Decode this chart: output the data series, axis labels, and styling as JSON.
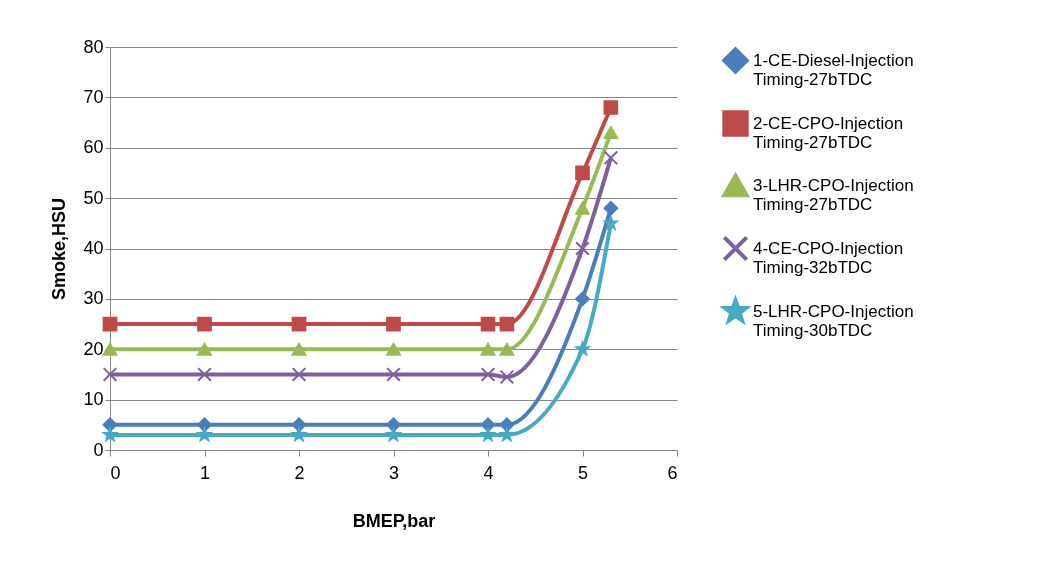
{
  "chart_data": {
    "type": "line",
    "xlabel": "BMEP,bar",
    "ylabel": "Smoke,HSU",
    "x": [
      0,
      1,
      2,
      3,
      4,
      4.2,
      5,
      5.3
    ],
    "xlim": [
      0,
      6
    ],
    "xticks": [
      0,
      1,
      2,
      3,
      4,
      5,
      6
    ],
    "ylim": [
      0,
      80
    ],
    "yticks": [
      0,
      10,
      20,
      30,
      40,
      50,
      60,
      70,
      80
    ],
    "grid": "y",
    "legend": "right",
    "series": [
      {
        "name": "1-CE-Diesel-Injection Timing-27bTDC",
        "color": "#4a7ebb",
        "marker": "diamond",
        "values": [
          5,
          5,
          5,
          5,
          5,
          5,
          30,
          48
        ]
      },
      {
        "name": "2-CE-CPO-Injection Timing-27bTDC",
        "color": "#be4b48",
        "marker": "square",
        "values": [
          25,
          25,
          25,
          25,
          25,
          25,
          55,
          68
        ]
      },
      {
        "name": "3-LHR-CPO-Injection Timing-27bTDC",
        "color": "#98b954",
        "marker": "triangle",
        "values": [
          20,
          20,
          20,
          20,
          20,
          20,
          48,
          63
        ]
      },
      {
        "name": "4-CE-CPO-Injection Timing-32bTDC",
        "color": "#7d60a0",
        "marker": "cross",
        "values": [
          15,
          15,
          15,
          15,
          15,
          14.5,
          40,
          58
        ]
      },
      {
        "name": "5-LHR-CPO-Injection Timing-30bTDC",
        "color": "#46aac5",
        "marker": "star",
        "values": [
          3,
          3,
          3,
          3,
          3,
          3,
          20,
          45
        ]
      }
    ]
  }
}
